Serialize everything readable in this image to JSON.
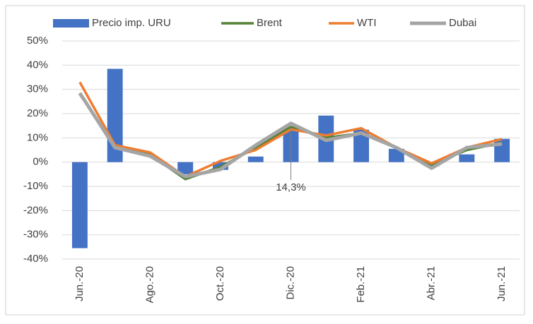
{
  "chart_data": {
    "type": "bar-line",
    "categories": [
      "Jun.-20",
      null,
      "Ago.-20",
      null,
      "Oct.-20",
      null,
      "Dic.-20",
      null,
      "Feb.-21",
      null,
      "Abr.-21",
      null,
      "Jun.-21"
    ],
    "series": [
      {
        "name": "Precio imp. URU",
        "type": "bar",
        "color": "#4472c4",
        "values": [
          -35.5,
          38.5,
          0,
          -5,
          -3.2,
          2.3,
          14.3,
          19.2,
          13.4,
          5.5,
          -1.7,
          3.2,
          9.6
        ],
        "value_labels": [
          null,
          null,
          null,
          null,
          null,
          null,
          "14,3%",
          null,
          null,
          null,
          null,
          null,
          null
        ]
      },
      {
        "name": "Brent",
        "type": "line",
        "color": "#548235",
        "values": [
          28,
          7,
          3,
          -7,
          -2,
          6,
          14.5,
          10,
          12,
          6,
          -1,
          5,
          8
        ]
      },
      {
        "name": "WTI",
        "type": "line",
        "color": "#ed7d31",
        "values": [
          33,
          7,
          4,
          -6,
          0.5,
          5,
          13.5,
          11,
          14,
          6,
          -0.5,
          6,
          9.5
        ]
      },
      {
        "name": "Dubai",
        "type": "line",
        "color": "#a5a5a5",
        "values": [
          28.5,
          6,
          2.5,
          -6,
          -3,
          7,
          16,
          9,
          12,
          6,
          -2.5,
          6,
          7.5
        ]
      }
    ],
    "ylim": [
      -40,
      50
    ],
    "yticks": [
      {
        "value": -40,
        "label": "-40%"
      },
      {
        "value": -30,
        "label": "-30%"
      },
      {
        "value": -20,
        "label": "-20%"
      },
      {
        "value": -10,
        "label": "-10%"
      },
      {
        "value": 0,
        "label": "0%"
      },
      {
        "value": 10,
        "label": "10%"
      },
      {
        "value": 20,
        "label": "20%"
      },
      {
        "value": 30,
        "label": "30%"
      },
      {
        "value": 40,
        "label": "40%"
      },
      {
        "value": 50,
        "label": "50%"
      }
    ],
    "grid": true,
    "legend": "top"
  }
}
